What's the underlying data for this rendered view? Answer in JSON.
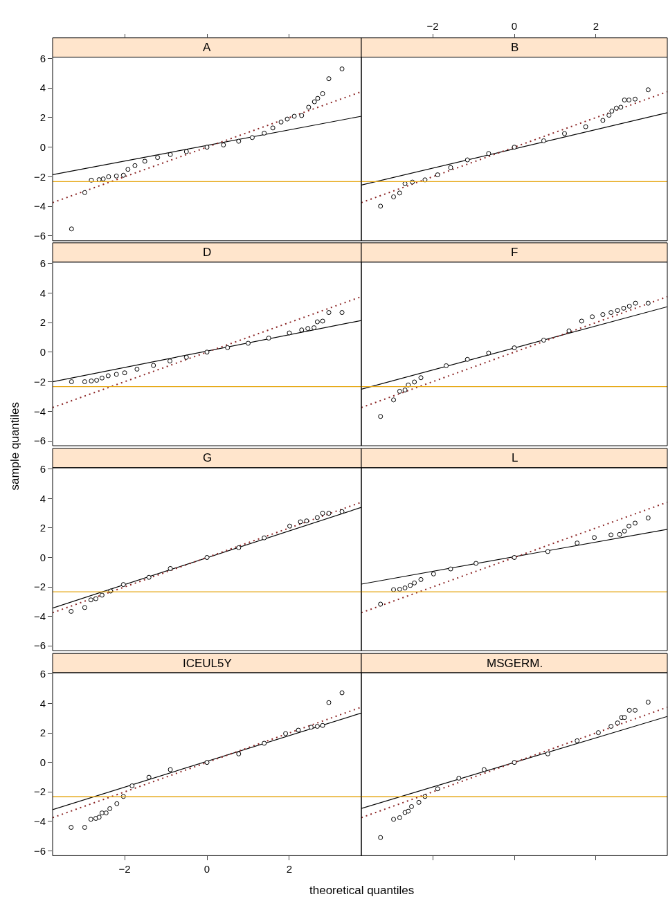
{
  "chart_data": [
    {
      "type": "scatter",
      "title": "A",
      "xlim": [
        -3.75,
        3.75
      ],
      "ylim": [
        -6.33,
        6.09
      ],
      "xticks": [
        -2,
        0,
        2
      ],
      "yticks": [
        -6,
        -4,
        -2,
        0,
        2,
        4,
        6
      ],
      "tick_labels": "y",
      "grid": false,
      "series": [
        {
          "marker": "circle",
          "color": "#000000",
          "x": [
            -3.29,
            -2.97,
            -2.81,
            -2.62,
            -2.52,
            -2.39,
            -2.2,
            -2.03,
            -1.92,
            -1.75,
            -1.51,
            -1.2,
            -0.89,
            -0.5,
            0,
            0.4,
            0.77,
            1.1,
            1.39,
            1.6,
            1.8,
            1.95,
            2.12,
            2.3,
            2.47,
            2.61,
            2.69,
            2.81,
            2.96,
            3.28
          ],
          "values": [
            -5.53,
            -3.07,
            -2.23,
            -2.2,
            -2.15,
            -2.0,
            -1.95,
            -1.9,
            -1.5,
            -1.25,
            -0.95,
            -0.7,
            -0.5,
            -0.3,
            0,
            0.15,
            0.4,
            0.65,
            0.95,
            1.3,
            1.7,
            1.9,
            2.09,
            2.14,
            2.7,
            3.07,
            3.3,
            3.62,
            4.63,
            5.29
          ]
        },
        {
          "type": "line",
          "marker": "none",
          "color": "#000000",
          "x": [
            -3.75,
            3.75
          ],
          "values": [
            -1.86,
            2.09
          ]
        },
        {
          "type": "line",
          "marker": "none",
          "color": "#8b2323",
          "line_style": "dotted",
          "x": [
            -3.75,
            3.75
          ],
          "values": [
            -3.75,
            3.75
          ]
        }
      ],
      "ref_lines": [
        {
          "axis": "y",
          "value": -2.33,
          "color": "#e6a817"
        }
      ]
    },
    {
      "type": "scatter",
      "title": "B",
      "xlim": [
        -3.75,
        3.75
      ],
      "ylim": [
        -6.33,
        6.09
      ],
      "xticks": [
        -2,
        0,
        2
      ],
      "yticks": [
        -6,
        -4,
        -2,
        0,
        2,
        4,
        6
      ],
      "tick_labels": "x",
      "grid": false,
      "series": [
        {
          "marker": "circle",
          "color": "#000000",
          "x": [
            -3.28,
            -2.96,
            -2.81,
            -2.68,
            -2.5,
            -2.19,
            -1.88,
            -1.56,
            -1.15,
            -0.63,
            0,
            0.72,
            1.23,
            1.75,
            2.17,
            2.32,
            2.39,
            2.5,
            2.61,
            2.7,
            2.81,
            2.96,
            3.28
          ],
          "values": [
            -3.99,
            -3.36,
            -3.1,
            -2.47,
            -2.36,
            -2.21,
            -1.87,
            -1.38,
            -0.86,
            -0.43,
            0,
            0.43,
            0.92,
            1.38,
            1.81,
            2.16,
            2.44,
            2.64,
            2.7,
            3.19,
            3.19,
            3.25,
            3.88
          ]
        },
        {
          "type": "line",
          "marker": "none",
          "color": "#000000",
          "x": [
            -3.75,
            3.75
          ],
          "values": [
            -2.56,
            2.33
          ]
        },
        {
          "type": "line",
          "marker": "none",
          "color": "#8b2323",
          "line_style": "dotted",
          "x": [
            -3.75,
            3.75
          ],
          "values": [
            -3.75,
            3.75
          ]
        }
      ],
      "ref_lines": [
        {
          "axis": "y",
          "value": -2.33,
          "color": "#e6a817"
        }
      ]
    },
    {
      "type": "scatter",
      "title": "D",
      "ylabel": "sample quantiles",
      "xlim": [
        -3.75,
        3.75
      ],
      "ylim": [
        -6.33,
        6.09
      ],
      "xticks": [
        -2,
        0,
        2
      ],
      "yticks": [
        -6,
        -4,
        -2,
        0,
        2,
        4,
        6
      ],
      "tick_labels": "y",
      "grid": false,
      "series": [
        {
          "marker": "circle",
          "color": "#000000",
          "x": [
            -3.29,
            -2.97,
            -2.81,
            -2.68,
            -2.55,
            -2.4,
            -2.2,
            -2.0,
            -1.7,
            -1.3,
            -0.9,
            -0.5,
            0,
            0.5,
            1.0,
            1.5,
            2.0,
            2.3,
            2.45,
            2.6,
            2.68,
            2.81,
            2.96,
            3.28
          ],
          "values": [
            -2.0,
            -2.0,
            -1.95,
            -1.9,
            -1.75,
            -1.6,
            -1.5,
            -1.4,
            -1.15,
            -0.9,
            -0.6,
            -0.35,
            0,
            0.3,
            0.6,
            0.95,
            1.3,
            1.5,
            1.6,
            1.65,
            2.05,
            2.1,
            2.68,
            2.68
          ]
        },
        {
          "type": "line",
          "marker": "none",
          "color": "#000000",
          "x": [
            -3.75,
            3.75
          ],
          "values": [
            -2.0,
            2.14
          ]
        },
        {
          "type": "line",
          "marker": "none",
          "color": "#8b2323",
          "line_style": "dotted",
          "x": [
            -3.75,
            3.75
          ],
          "values": [
            -3.75,
            3.75
          ]
        }
      ],
      "ref_lines": [
        {
          "axis": "y",
          "value": -2.33,
          "color": "#e6a817"
        }
      ]
    },
    {
      "type": "scatter",
      "title": "F",
      "xlim": [
        -3.75,
        3.75
      ],
      "ylim": [
        -6.33,
        6.09
      ],
      "xticks": [
        -2,
        0,
        2
      ],
      "yticks": [
        -6,
        -4,
        -2,
        0,
        2,
        4,
        6
      ],
      "tick_labels": false,
      "grid": false,
      "series": [
        {
          "marker": "circle",
          "color": "#000000",
          "x": [
            -3.28,
            -2.96,
            -2.81,
            -2.68,
            -2.6,
            -2.45,
            -2.29,
            -1.67,
            -1.15,
            -0.63,
            0,
            0.72,
            1.34,
            1.65,
            1.91,
            2.17,
            2.37,
            2.53,
            2.68,
            2.82,
            2.97,
            3.28
          ],
          "values": [
            -4.35,
            -3.23,
            -2.65,
            -2.56,
            -2.22,
            -2.02,
            -1.73,
            -0.92,
            -0.49,
            -0.06,
            0.29,
            0.81,
            1.44,
            2.1,
            2.39,
            2.54,
            2.68,
            2.82,
            2.97,
            3.11,
            3.31,
            3.31
          ]
        },
        {
          "type": "line",
          "marker": "none",
          "color": "#000000",
          "x": [
            -3.75,
            3.75
          ],
          "values": [
            -2.51,
            3.07
          ]
        },
        {
          "type": "line",
          "marker": "none",
          "color": "#8b2323",
          "line_style": "dotted",
          "x": [
            -3.75,
            3.75
          ],
          "values": [
            -3.75,
            3.75
          ]
        }
      ],
      "ref_lines": [
        {
          "axis": "y",
          "value": -2.33,
          "color": "#e6a817"
        }
      ]
    },
    {
      "type": "scatter",
      "title": "G",
      "xlim": [
        -3.75,
        3.75
      ],
      "ylim": [
        -6.33,
        6.09
      ],
      "xticks": [
        -2,
        0,
        2
      ],
      "yticks": [
        -6,
        -4,
        -2,
        0,
        2,
        4,
        6
      ],
      "tick_labels": "y",
      "grid": false,
      "series": [
        {
          "marker": "circle",
          "color": "#000000",
          "x": [
            -3.3,
            -2.97,
            -2.82,
            -2.7,
            -2.55,
            -2.34,
            -2.03,
            -1.41,
            -0.89,
            0,
            0.77,
            1.39,
            2.01,
            2.27,
            2.42,
            2.68,
            2.81,
            2.96,
            3.28
          ],
          "values": [
            -3.66,
            -3.4,
            -2.88,
            -2.8,
            -2.56,
            -2.28,
            -1.84,
            -1.35,
            -0.75,
            0,
            0.66,
            1.33,
            2.13,
            2.42,
            2.48,
            2.71,
            3.0,
            3.0,
            3.11
          ]
        },
        {
          "type": "line",
          "marker": "none",
          "color": "#000000",
          "x": [
            -3.75,
            3.75
          ],
          "values": [
            -3.44,
            3.4
          ]
        },
        {
          "type": "line",
          "marker": "none",
          "color": "#8b2323",
          "line_style": "dotted",
          "x": [
            -3.75,
            3.75
          ],
          "values": [
            -3.75,
            3.75
          ]
        }
      ],
      "ref_lines": [
        {
          "axis": "y",
          "value": -2.33,
          "color": "#e6a817"
        }
      ]
    },
    {
      "type": "scatter",
      "title": "L",
      "xlim": [
        -3.75,
        3.75
      ],
      "ylim": [
        -6.33,
        6.09
      ],
      "xticks": [
        -2,
        0,
        2
      ],
      "yticks": [
        -6,
        -4,
        -2,
        0,
        2,
        4,
        6
      ],
      "tick_labels": false,
      "grid": false,
      "series": [
        {
          "marker": "circle",
          "color": "#000000",
          "x": [
            -3.28,
            -2.96,
            -2.81,
            -2.68,
            -2.55,
            -2.45,
            -2.29,
            -1.98,
            -1.56,
            -0.94,
            0,
            0.82,
            1.54,
            1.96,
            2.37,
            2.58,
            2.7,
            2.81,
            2.96,
            3.28
          ],
          "values": [
            -3.17,
            -2.19,
            -2.16,
            -2.07,
            -1.9,
            -1.73,
            -1.5,
            -1.12,
            -0.78,
            -0.4,
            0,
            0.4,
            0.98,
            1.35,
            1.53,
            1.56,
            1.79,
            2.13,
            2.33,
            2.68
          ]
        },
        {
          "type": "line",
          "marker": "none",
          "color": "#000000",
          "x": [
            -3.75,
            3.75
          ],
          "values": [
            -1.81,
            1.91
          ]
        },
        {
          "type": "line",
          "marker": "none",
          "color": "#8b2323",
          "line_style": "dotted",
          "x": [
            -3.75,
            3.75
          ],
          "values": [
            -3.75,
            3.75
          ]
        }
      ],
      "ref_lines": [
        {
          "axis": "y",
          "value": -2.33,
          "color": "#e6a817"
        }
      ]
    },
    {
      "type": "scatter",
      "title": "ICEUL5Y",
      "xlabel": "theoretical quantiles",
      "xlim": [
        -3.75,
        3.75
      ],
      "ylim": [
        -6.33,
        6.09
      ],
      "xticks": [
        -2,
        0,
        2
      ],
      "yticks": [
        -6,
        -4,
        -2,
        0,
        2,
        4,
        6
      ],
      "grid": false,
      "series": [
        {
          "marker": "circle",
          "color": "#000000",
          "x": [
            -3.3,
            -2.97,
            -2.82,
            -2.7,
            -2.62,
            -2.55,
            -2.45,
            -2.36,
            -2.19,
            -2.03,
            -1.82,
            -1.41,
            -0.89,
            0,
            0.77,
            1.39,
            1.91,
            2.22,
            2.53,
            2.68,
            2.81,
            2.96,
            3.28
          ],
          "values": [
            -4.41,
            -4.41,
            -3.86,
            -3.8,
            -3.72,
            -3.43,
            -3.43,
            -3.14,
            -2.8,
            -2.31,
            -1.59,
            -1.01,
            -0.49,
            0,
            0.58,
            1.3,
            1.96,
            2.19,
            2.39,
            2.45,
            2.51,
            4.06,
            4.73
          ]
        },
        {
          "type": "line",
          "marker": "none",
          "color": "#000000",
          "x": [
            -3.75,
            3.75
          ],
          "values": [
            -3.21,
            3.35
          ]
        },
        {
          "type": "line",
          "marker": "none",
          "color": "#8b2323",
          "line_style": "dotted",
          "x": [
            -3.75,
            3.75
          ],
          "values": [
            -3.75,
            3.75
          ]
        }
      ],
      "ref_lines": [
        {
          "axis": "y",
          "value": -2.33,
          "color": "#e6a817"
        }
      ]
    },
    {
      "type": "scatter",
      "title": "MSGERM.",
      "xlim": [
        -3.75,
        3.75
      ],
      "ylim": [
        -6.33,
        6.09
      ],
      "xticks": [
        -2,
        0,
        2
      ],
      "yticks": [
        -6,
        -4,
        -2,
        0,
        2,
        4,
        6
      ],
      "tick_labels": false,
      "grid": false,
      "series": [
        {
          "marker": "circle",
          "color": "#000000",
          "x": [
            -3.28,
            -2.96,
            -2.81,
            -2.68,
            -2.6,
            -2.52,
            -2.34,
            -2.19,
            -1.88,
            -1.36,
            -0.74,
            0,
            0.82,
            1.54,
            2.06,
            2.37,
            2.53,
            2.63,
            2.7,
            2.82,
            2.96,
            3.28
          ],
          "values": [
            -5.1,
            -3.86,
            -3.75,
            -3.4,
            -3.31,
            -3.0,
            -2.71,
            -2.31,
            -1.79,
            -1.07,
            -0.49,
            0,
            0.58,
            1.47,
            2.02,
            2.45,
            2.68,
            3.05,
            3.05,
            3.54,
            3.54,
            4.09
          ]
        },
        {
          "type": "line",
          "marker": "none",
          "color": "#000000",
          "x": [
            -3.75,
            3.75
          ],
          "values": [
            -3.12,
            3.12
          ]
        },
        {
          "type": "line",
          "marker": "none",
          "color": "#8b2323",
          "line_style": "dotted",
          "x": [
            -3.75,
            3.75
          ],
          "values": [
            -3.75,
            3.75
          ]
        }
      ],
      "ref_lines": [
        {
          "axis": "y",
          "value": -2.33,
          "color": "#e6a817"
        }
      ]
    }
  ]
}
